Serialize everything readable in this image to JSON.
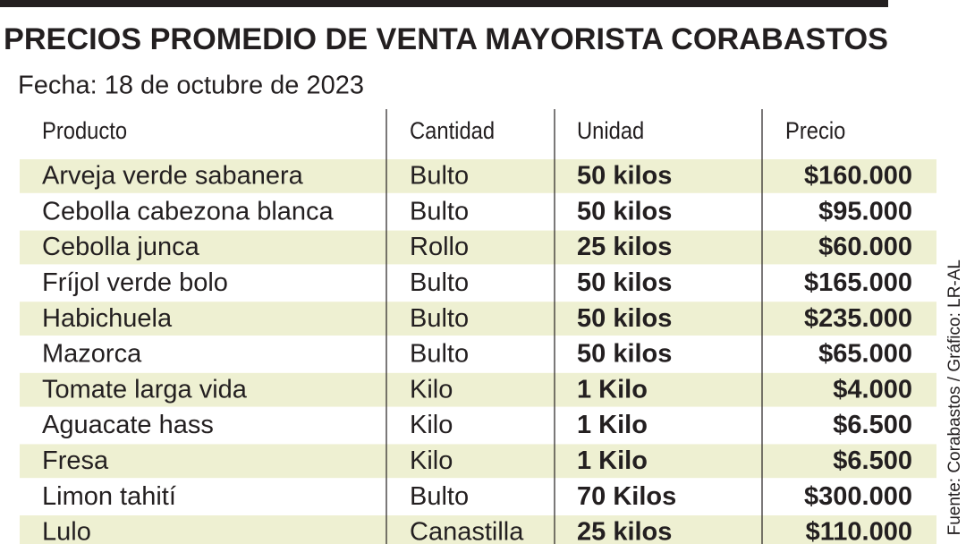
{
  "header": {
    "title": "PRECIOS PROMEDIO DE VENTA MAYORISTA CORABASTOS",
    "subtitle": "Fecha: 18 de octubre de 2023"
  },
  "table": {
    "columns": [
      "Producto",
      "Cantidad",
      "Unidad",
      "Precio"
    ],
    "rows": [
      [
        "Arveja verde sabanera",
        "Bulto",
        "50 kilos",
        "$160.000"
      ],
      [
        "Cebolla cabezona blanca",
        "Bulto",
        "50 kilos",
        "$95.000"
      ],
      [
        "Cebolla junca",
        "Rollo",
        "25 kilos",
        "$60.000"
      ],
      [
        "Fríjol verde bolo",
        "Bulto",
        "50 kilos",
        "$165.000"
      ],
      [
        "Habichuela",
        "Bulto",
        "50 kilos",
        "$235.000"
      ],
      [
        "Mazorca",
        "Bulto",
        "50 kilos",
        "$65.000"
      ],
      [
        "Tomate larga vida",
        "Kilo",
        "1 Kilo",
        "$4.000"
      ],
      [
        "Aguacate hass",
        "Kilo",
        "1 Kilo",
        "$6.500"
      ],
      [
        "Fresa",
        "Kilo",
        "1 Kilo",
        "$6.500"
      ],
      [
        "Limon tahití",
        "Bulto",
        "70 Kilos",
        "$300.000"
      ],
      [
        "Lulo",
        "Canastilla",
        "25 kilos",
        "$110.000"
      ]
    ]
  },
  "source": "Fuente: Corabastos / Gráfico: LR-AL"
}
